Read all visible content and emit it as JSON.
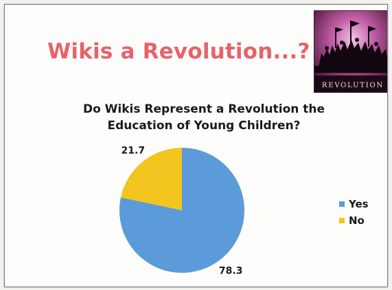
{
  "slide": {
    "title": "Wikis a Revolution...?",
    "banner_text": "REVOLUTION"
  },
  "colors": {
    "title": "#e8626a",
    "yes": "#5b9bd9",
    "no": "#f2c51f"
  },
  "chart_data": {
    "type": "pie",
    "title_lines": [
      "Do Wikis Represent a Revolution the",
      "Education of Young Children?"
    ],
    "categories": [
      "Yes",
      "No"
    ],
    "values": [
      78.3,
      21.7
    ],
    "data_labels": [
      "78.3",
      "21.7"
    ],
    "colors": [
      "#5b9bd9",
      "#f2c51f"
    ],
    "legend_position": "right"
  }
}
